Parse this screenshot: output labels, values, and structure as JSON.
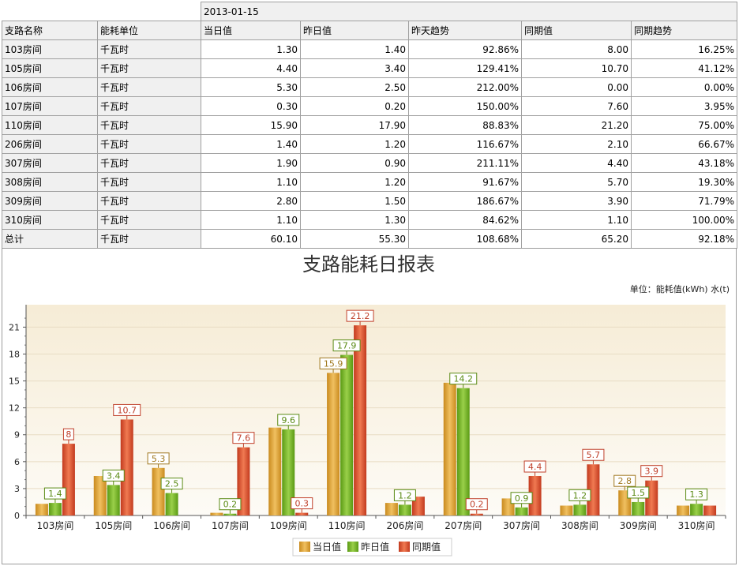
{
  "report": {
    "date": "2013-01-15",
    "headers": [
      "支路名称",
      "能耗单位",
      "当日值",
      "昨日值",
      "昨天趋势",
      "同期值",
      "同期趋势"
    ],
    "rows": [
      {
        "name": "103房间",
        "unit": "千瓦时",
        "today": "1.30",
        "yesterday": "1.40",
        "trend": "92.86%",
        "same_period": "8.00",
        "same_trend": "16.25%"
      },
      {
        "name": "105房间",
        "unit": "千瓦时",
        "today": "4.40",
        "yesterday": "3.40",
        "trend": "129.41%",
        "same_period": "10.70",
        "same_trend": "41.12%"
      },
      {
        "name": "106房间",
        "unit": "千瓦时",
        "today": "5.30",
        "yesterday": "2.50",
        "trend": "212.00%",
        "same_period": "0.00",
        "same_trend": "0.00%"
      },
      {
        "name": "107房间",
        "unit": "千瓦时",
        "today": "0.30",
        "yesterday": "0.20",
        "trend": "150.00%",
        "same_period": "7.60",
        "same_trend": "3.95%"
      },
      {
        "name": "110房间",
        "unit": "千瓦时",
        "today": "15.90",
        "yesterday": "17.90",
        "trend": "88.83%",
        "same_period": "21.20",
        "same_trend": "75.00%"
      },
      {
        "name": "206房间",
        "unit": "千瓦时",
        "today": "1.40",
        "yesterday": "1.20",
        "trend": "116.67%",
        "same_period": "2.10",
        "same_trend": "66.67%"
      },
      {
        "name": "307房间",
        "unit": "千瓦时",
        "today": "1.90",
        "yesterday": "0.90",
        "trend": "211.11%",
        "same_period": "4.40",
        "same_trend": "43.18%"
      },
      {
        "name": "308房间",
        "unit": "千瓦时",
        "today": "1.10",
        "yesterday": "1.20",
        "trend": "91.67%",
        "same_period": "5.70",
        "same_trend": "19.30%"
      },
      {
        "name": "309房间",
        "unit": "千瓦时",
        "today": "2.80",
        "yesterday": "1.50",
        "trend": "186.67%",
        "same_period": "3.90",
        "same_trend": "71.79%"
      },
      {
        "name": "310房间",
        "unit": "千瓦时",
        "today": "1.10",
        "yesterday": "1.30",
        "trend": "84.62%",
        "same_period": "1.10",
        "same_trend": "100.00%"
      },
      {
        "name": "总计",
        "unit": "千瓦时",
        "today": "60.10",
        "yesterday": "55.30",
        "trend": "108.68%",
        "same_period": "65.20",
        "same_trend": "92.18%"
      }
    ]
  },
  "chart_data": {
    "type": "bar",
    "title": "支路能耗日报表",
    "unit_note": "单位：能耗值(kWh) 水(t)",
    "categories": [
      "103房间",
      "105房间",
      "106房间",
      "107房间",
      "109房间",
      "110房间",
      "206房间",
      "207房间",
      "307房间",
      "308房间",
      "309房间",
      "310房间"
    ],
    "series": [
      {
        "name": "当日值",
        "color": "#e0a63a",
        "values": [
          1.3,
          4.4,
          5.3,
          0.3,
          9.8,
          15.9,
          1.4,
          14.8,
          1.9,
          1.1,
          2.8,
          1.1
        ],
        "labels": [
          "",
          "",
          "5.3",
          "",
          "",
          "15.9",
          "",
          "",
          "",
          "",
          "2.8",
          ""
        ]
      },
      {
        "name": "昨日值",
        "color": "#7ab82e",
        "values": [
          1.4,
          3.4,
          2.5,
          0.2,
          9.6,
          17.9,
          1.2,
          14.2,
          0.9,
          1.2,
          1.5,
          1.3
        ],
        "labels": [
          "1.4",
          "3.4",
          "2.5",
          "0.2",
          "9.6",
          "17.9",
          "1.2",
          "14.2",
          "0.9",
          "1.2",
          "1.5",
          "1.3"
        ]
      },
      {
        "name": "同期值",
        "color": "#e0553a",
        "values": [
          8.0,
          10.7,
          0.0,
          7.6,
          0.3,
          21.2,
          2.1,
          0.2,
          4.4,
          5.7,
          3.9,
          1.1
        ],
        "labels": [
          "8",
          "10.7",
          "",
          "7.6",
          "0.3",
          "21.2",
          "",
          "0.2",
          "4.4",
          "5.7",
          "3.9",
          ""
        ]
      }
    ],
    "ylim": [
      0,
      23.5
    ],
    "yticks": [
      0,
      3,
      6,
      9,
      12,
      15,
      18,
      21
    ],
    "legend": "bottom-center",
    "grid": true
  }
}
